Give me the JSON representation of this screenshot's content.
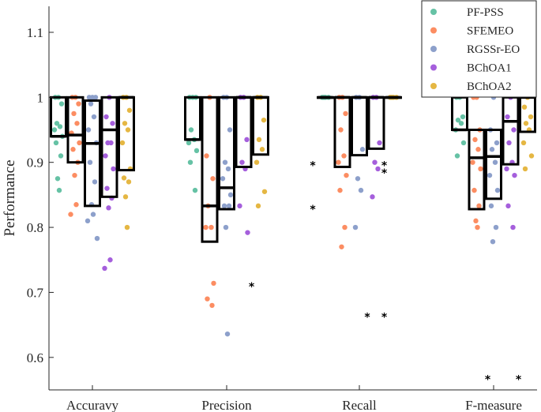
{
  "chart_data": {
    "type": "boxplot-swarm",
    "ylabel": "Performance",
    "ylim": [
      0.55,
      1.14
    ],
    "yticks": [
      "0.6",
      "0.7",
      "0.8",
      "0.9",
      "1",
      "1.1"
    ],
    "categories": [
      "Accuravy",
      "Precision",
      "Recall",
      "F-measure"
    ],
    "legend_position": "top-right",
    "series": [
      {
        "name": "PF-PSS",
        "color": "#66c2a5",
        "boxes": [
          {
            "q1": 0.94,
            "median": 0.94,
            "q3": 1.0,
            "points": [
              1.0,
              1.0,
              0.99,
              0.96,
              0.955,
              0.95,
              0.94,
              0.93,
              0.91,
              0.875,
              0.857
            ],
            "outliers": []
          },
          {
            "q1": 0.935,
            "median": 0.935,
            "q3": 1.0,
            "points": [
              1.0,
              1.0,
              1.0,
              0.95,
              0.935,
              0.93,
              0.918,
              0.9,
              0.857
            ],
            "outliers": []
          },
          {
            "q1": 1.0,
            "median": 1.0,
            "q3": 1.0,
            "points": [
              1.0,
              1.0,
              1.0,
              1.0
            ],
            "outliers": [
              0.9,
              0.833
            ]
          },
          {
            "q1": 0.95,
            "median": 0.95,
            "q3": 1.0,
            "points": [
              1.0,
              1.0,
              0.97,
              0.965,
              0.96,
              0.95,
              0.93,
              0.91
            ],
            "outliers": []
          }
        ]
      },
      {
        "name": "SFEMEO",
        "color": "#fc8d62",
        "boxes": [
          {
            "q1": 0.9,
            "median": 0.942,
            "q3": 1.0,
            "points": [
              1.0,
              1.0,
              0.99,
              0.975,
              0.96,
              0.945,
              0.93,
              0.92,
              0.9,
              0.88,
              0.835,
              0.82
            ],
            "outliers": []
          },
          {
            "q1": 0.778,
            "median": 0.833,
            "q3": 1.0,
            "points": [
              1.0,
              0.91,
              0.875,
              0.833,
              0.8,
              0.8,
              0.714,
              0.69,
              0.68
            ],
            "outliers": []
          },
          {
            "q1": 0.893,
            "median": 1.0,
            "q3": 1.0,
            "points": [
              1.0,
              1.0,
              0.975,
              0.95,
              0.91,
              0.9,
              0.88,
              0.857,
              0.8,
              0.77
            ],
            "outliers": []
          },
          {
            "q1": 0.828,
            "median": 0.907,
            "q3": 0.95,
            "points": [
              1.0,
              1.0,
              0.95,
              0.935,
              0.92,
              0.9,
              0.89,
              0.857,
              0.833,
              0.81,
              0.8
            ],
            "outliers": [
              0.571
            ]
          }
        ]
      },
      {
        "name": "RGSSr-EO",
        "color": "#8da0cb",
        "boxes": [
          {
            "q1": 0.833,
            "median": 0.929,
            "q3": 0.995,
            "points": [
              1.0,
              1.0,
              1.0,
              0.99,
              0.97,
              0.95,
              0.93,
              0.9,
              0.87,
              0.835,
              0.82,
              0.81,
              0.783
            ],
            "outliers": []
          },
          {
            "q1": 0.828,
            "median": 0.861,
            "q3": 1.0,
            "points": [
              1.0,
              1.0,
              0.95,
              0.9,
              0.89,
              0.875,
              0.85,
              0.833,
              0.833,
              0.8,
              0.636
            ],
            "outliers": []
          },
          {
            "q1": 0.911,
            "median": 1.0,
            "q3": 1.0,
            "points": [
              1.0,
              1.0,
              0.92,
              0.875,
              0.857,
              0.8
            ],
            "outliers": [
              0.667
            ]
          },
          {
            "q1": 0.844,
            "median": 0.909,
            "q3": 0.95,
            "points": [
              1.0,
              0.95,
              0.93,
              0.92,
              0.9,
              0.88,
              0.857,
              0.833,
              0.8,
              0.778
            ],
            "outliers": []
          }
        ]
      },
      {
        "name": "BChOA1",
        "color": "#a55fdc",
        "boxes": [
          {
            "q1": 0.847,
            "median": 0.95,
            "q3": 1.0,
            "points": [
              1.0,
              0.97,
              0.96,
              0.93,
              0.93,
              0.91,
              0.89,
              0.86,
              0.845,
              0.83,
              0.75,
              0.737
            ],
            "outliers": []
          },
          {
            "q1": 0.893,
            "median": 1.0,
            "q3": 1.0,
            "points": [
              1.0,
              1.0,
              0.935,
              0.9,
              0.89,
              0.833,
              0.792
            ],
            "outliers": [
              0.714
            ]
          },
          {
            "q1": 0.921,
            "median": 1.0,
            "q3": 1.0,
            "points": [
              1.0,
              1.0,
              0.93,
              0.9,
              0.89,
              0.847
            ],
            "outliers": [
              0.9,
              0.889,
              0.667
            ]
          },
          {
            "q1": 0.897,
            "median": 0.963,
            "q3": 1.0,
            "points": [
              1.0,
              0.97,
              0.95,
              0.93,
              0.9,
              0.89,
              0.88,
              0.833,
              0.8
            ],
            "outliers": [
              0.571
            ]
          }
        ]
      },
      {
        "name": "BChOA2",
        "color": "#e5b743",
        "boxes": [
          {
            "q1": 0.888,
            "median": 1.0,
            "q3": 1.0,
            "points": [
              1.0,
              1.0,
              0.98,
              0.96,
              0.95,
              0.93,
              0.89,
              0.876,
              0.87,
              0.847,
              0.8
            ],
            "outliers": []
          },
          {
            "q1": 0.912,
            "median": 1.0,
            "q3": 1.0,
            "points": [
              1.0,
              1.0,
              0.965,
              0.935,
              0.92,
              0.9,
              0.855,
              0.833
            ],
            "outliers": []
          },
          {
            "q1": 1.0,
            "median": 1.0,
            "q3": 1.0,
            "points": [
              1.0,
              1.0,
              1.0,
              1.0
            ],
            "outliers": []
          },
          {
            "q1": 0.947,
            "median": 1.0,
            "q3": 1.0,
            "points": [
              1.0,
              0.985,
              0.97,
              0.96,
              0.95,
              0.93,
              0.91,
              0.89
            ],
            "outliers": []
          }
        ]
      }
    ]
  }
}
